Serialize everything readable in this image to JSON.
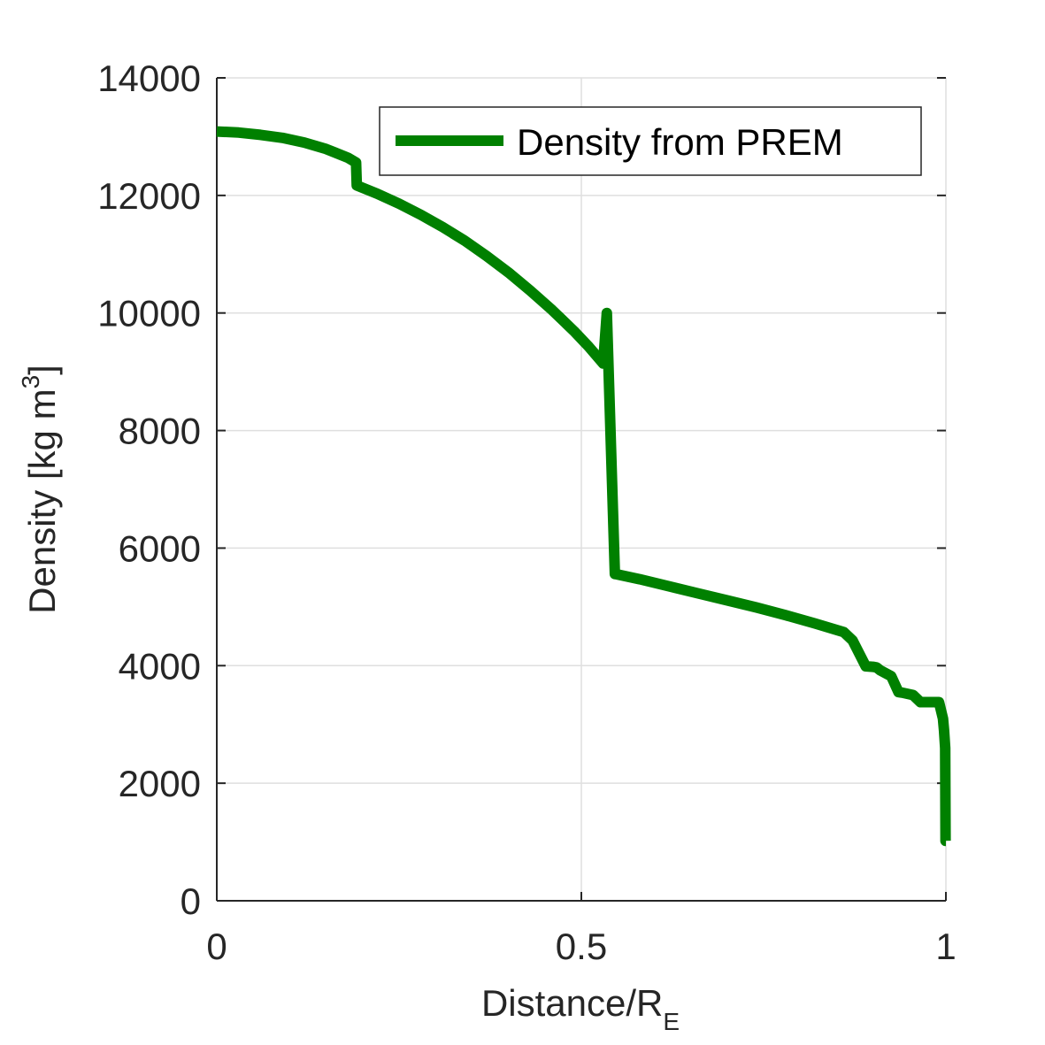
{
  "chart_data": {
    "type": "line",
    "title": "",
    "xlabel": {
      "main": "Distance/R",
      "sub": "E"
    },
    "ylabel": {
      "main": "Density [kg m",
      "sup": "3",
      "close": "]"
    },
    "xlim": [
      0,
      1
    ],
    "ylim": [
      0,
      14000
    ],
    "xticks": [
      0,
      0.5,
      1
    ],
    "xtick_labels": [
      "0",
      "0.5",
      "1"
    ],
    "yticks": [
      0,
      2000,
      4000,
      6000,
      8000,
      10000,
      12000,
      14000
    ],
    "ytick_labels": [
      "0",
      "2000",
      "4000",
      "6000",
      "8000",
      "10000",
      "12000",
      "14000"
    ],
    "grid": true,
    "legend_position": "top-right",
    "series": [
      {
        "name": "Density from PREM",
        "color": "#008000",
        "x": [
          0,
          0.03,
          0.06,
          0.09,
          0.12,
          0.15,
          0.18,
          0.191,
          0.192,
          0.22,
          0.25,
          0.28,
          0.31,
          0.34,
          0.37,
          0.4,
          0.43,
          0.46,
          0.49,
          0.51,
          0.53,
          0.535,
          0.546,
          0.547,
          0.58,
          0.62,
          0.66,
          0.7,
          0.74,
          0.78,
          0.82,
          0.86,
          0.872,
          0.89,
          0.9,
          0.905,
          0.91,
          0.925,
          0.935,
          0.94,
          0.955,
          0.965,
          0.98,
          0.9905,
          0.996,
          0.9975,
          0.999,
          0.9995,
          1.0
        ],
        "y": [
          13088,
          13070,
          13030,
          12980,
          12900,
          12790,
          12640,
          12560,
          12170,
          12030,
          11860,
          11670,
          11460,
          11230,
          10970,
          10690,
          10380,
          10050,
          9690,
          9430,
          9140,
          10000,
          5560,
          5560,
          5470,
          5350,
          5230,
          5110,
          4990,
          4860,
          4720,
          4570,
          4430,
          3990,
          3980,
          3970,
          3920,
          3820,
          3550,
          3540,
          3500,
          3380,
          3380,
          3380,
          3100,
          2900,
          2600,
          1020,
          1020
        ]
      }
    ]
  }
}
